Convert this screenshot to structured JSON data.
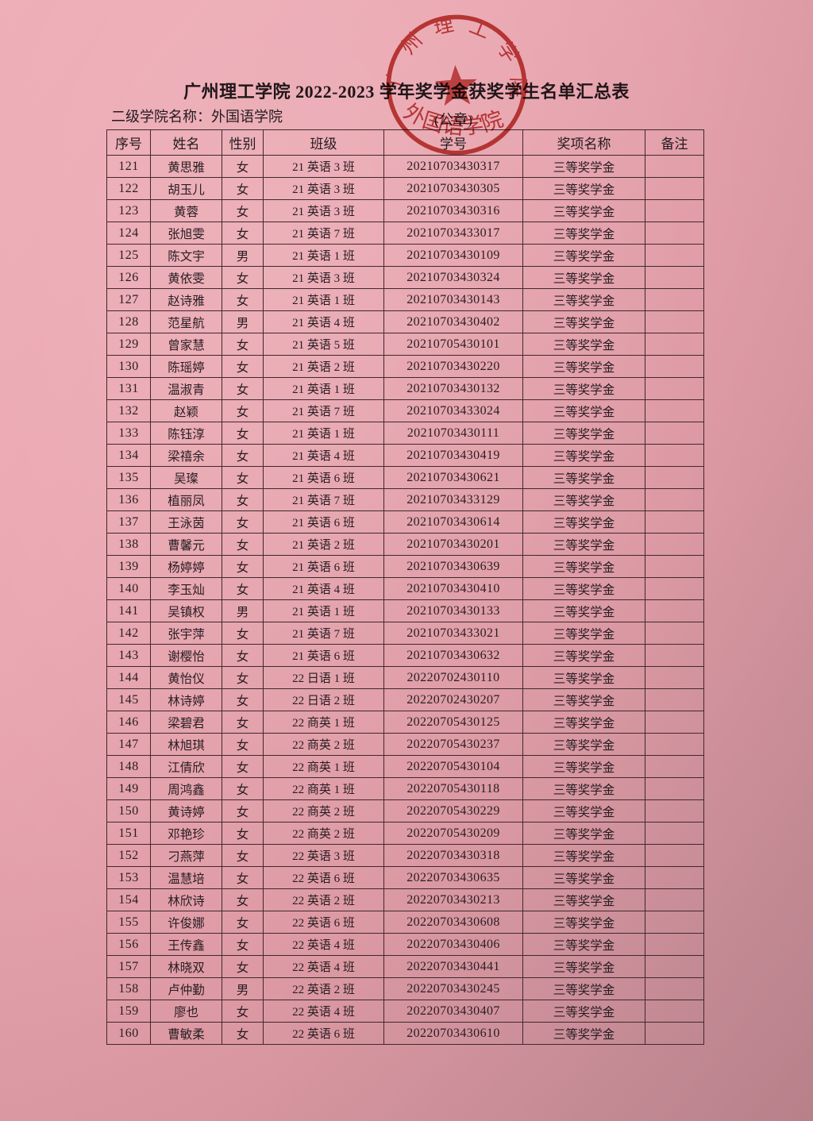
{
  "document": {
    "title": "广州理工学院 2022-2023 学年奖学金获奖学生名单汇总表",
    "college_label": "二级学院名称：外国语学院",
    "seal_label": "(公章)"
  },
  "stamp": {
    "ring_text": "广州理工学院",
    "bottom_text": "外国语学院",
    "color": "#bd3530"
  },
  "table": {
    "headers": [
      "序号",
      "姓名",
      "性别",
      "班级",
      "学号",
      "奖项名称",
      "备注"
    ],
    "column_names": [
      "cell-index",
      "cell-name",
      "cell-gender",
      "cell-class",
      "cell-student-id",
      "cell-award",
      "cell-note"
    ],
    "rows": [
      [
        "121",
        "黄思雅",
        "女",
        "21 英语 3 班",
        "20210703430317",
        "三等奖学金",
        ""
      ],
      [
        "122",
        "胡玉儿",
        "女",
        "21 英语 3 班",
        "20210703430305",
        "三等奖学金",
        ""
      ],
      [
        "123",
        "黄蓉",
        "女",
        "21 英语 3 班",
        "20210703430316",
        "三等奖学金",
        ""
      ],
      [
        "124",
        "张旭雯",
        "女",
        "21 英语 7 班",
        "20210703433017",
        "三等奖学金",
        ""
      ],
      [
        "125",
        "陈文宇",
        "男",
        "21 英语 1 班",
        "20210703430109",
        "三等奖学金",
        ""
      ],
      [
        "126",
        "黄依雯",
        "女",
        "21 英语 3 班",
        "20210703430324",
        "三等奖学金",
        ""
      ],
      [
        "127",
        "赵诗雅",
        "女",
        "21 英语 1 班",
        "20210703430143",
        "三等奖学金",
        ""
      ],
      [
        "128",
        "范星航",
        "男",
        "21 英语 4 班",
        "20210703430402",
        "三等奖学金",
        ""
      ],
      [
        "129",
        "曾家慧",
        "女",
        "21 英语 5 班",
        "20210705430101",
        "三等奖学金",
        ""
      ],
      [
        "130",
        "陈瑶婷",
        "女",
        "21 英语 2 班",
        "20210703430220",
        "三等奖学金",
        ""
      ],
      [
        "131",
        "温淑青",
        "女",
        "21 英语 1 班",
        "20210703430132",
        "三等奖学金",
        ""
      ],
      [
        "132",
        "赵颖",
        "女",
        "21 英语 7 班",
        "20210703433024",
        "三等奖学金",
        ""
      ],
      [
        "133",
        "陈钰淳",
        "女",
        "21 英语 1 班",
        "20210703430111",
        "三等奖学金",
        ""
      ],
      [
        "134",
        "梁禧余",
        "女",
        "21 英语 4 班",
        "20210703430419",
        "三等奖学金",
        ""
      ],
      [
        "135",
        "吴璨",
        "女",
        "21 英语 6 班",
        "20210703430621",
        "三等奖学金",
        ""
      ],
      [
        "136",
        "植丽凤",
        "女",
        "21 英语 7 班",
        "20210703433129",
        "三等奖学金",
        ""
      ],
      [
        "137",
        "王泳茵",
        "女",
        "21 英语 6 班",
        "20210703430614",
        "三等奖学金",
        ""
      ],
      [
        "138",
        "曹馨元",
        "女",
        "21 英语 2 班",
        "20210703430201",
        "三等奖学金",
        ""
      ],
      [
        "139",
        "杨婷婷",
        "女",
        "21 英语 6 班",
        "20210703430639",
        "三等奖学金",
        ""
      ],
      [
        "140",
        "李玉灿",
        "女",
        "21 英语 4 班",
        "20210703430410",
        "三等奖学金",
        ""
      ],
      [
        "141",
        "吴镇权",
        "男",
        "21 英语 1 班",
        "20210703430133",
        "三等奖学金",
        ""
      ],
      [
        "142",
        "张宇萍",
        "女",
        "21 英语 7 班",
        "20210703433021",
        "三等奖学金",
        ""
      ],
      [
        "143",
        "谢樱怡",
        "女",
        "21 英语 6 班",
        "20210703430632",
        "三等奖学金",
        ""
      ],
      [
        "144",
        "黄怡仪",
        "女",
        "22 日语 1 班",
        "20220702430110",
        "三等奖学金",
        ""
      ],
      [
        "145",
        "林诗婷",
        "女",
        "22 日语 2 班",
        "20220702430207",
        "三等奖学金",
        ""
      ],
      [
        "146",
        "梁碧君",
        "女",
        "22 商英 1 班",
        "20220705430125",
        "三等奖学金",
        ""
      ],
      [
        "147",
        "林旭琪",
        "女",
        "22 商英 2 班",
        "20220705430237",
        "三等奖学金",
        ""
      ],
      [
        "148",
        "江倩欣",
        "女",
        "22 商英 1 班",
        "20220705430104",
        "三等奖学金",
        ""
      ],
      [
        "149",
        "周鸿鑫",
        "女",
        "22 商英 1 班",
        "20220705430118",
        "三等奖学金",
        ""
      ],
      [
        "150",
        "黄诗婷",
        "女",
        "22 商英 2 班",
        "20220705430229",
        "三等奖学金",
        ""
      ],
      [
        "151",
        "邓艳珍",
        "女",
        "22 商英 2 班",
        "20220705430209",
        "三等奖学金",
        ""
      ],
      [
        "152",
        "刁燕萍",
        "女",
        "22 英语 3 班",
        "20220703430318",
        "三等奖学金",
        ""
      ],
      [
        "153",
        "温慧培",
        "女",
        "22 英语 6 班",
        "20220703430635",
        "三等奖学金",
        ""
      ],
      [
        "154",
        "林欣诗",
        "女",
        "22 英语 2 班",
        "20220703430213",
        "三等奖学金",
        ""
      ],
      [
        "155",
        "许俊娜",
        "女",
        "22 英语 6 班",
        "20220703430608",
        "三等奖学金",
        ""
      ],
      [
        "156",
        "王传鑫",
        "女",
        "22 英语 4 班",
        "20220703430406",
        "三等奖学金",
        ""
      ],
      [
        "157",
        "林晓双",
        "女",
        "22 英语 4 班",
        "20220703430441",
        "三等奖学金",
        ""
      ],
      [
        "158",
        "卢仲勤",
        "男",
        "22 英语 2 班",
        "20220703430245",
        "三等奖学金",
        ""
      ],
      [
        "159",
        "廖也",
        "女",
        "22 英语 4 班",
        "20220703430407",
        "三等奖学金",
        ""
      ],
      [
        "160",
        "曹敏柔",
        "女",
        "22 英语 6 班",
        "20220703430610",
        "三等奖学金",
        ""
      ]
    ]
  },
  "colors": {
    "paper_pink_light": "#eeadb7",
    "paper_pink_dark": "#c28a93",
    "table_border": "#41282e",
    "text": "#241a20",
    "stamp_red": "#bd3530"
  }
}
